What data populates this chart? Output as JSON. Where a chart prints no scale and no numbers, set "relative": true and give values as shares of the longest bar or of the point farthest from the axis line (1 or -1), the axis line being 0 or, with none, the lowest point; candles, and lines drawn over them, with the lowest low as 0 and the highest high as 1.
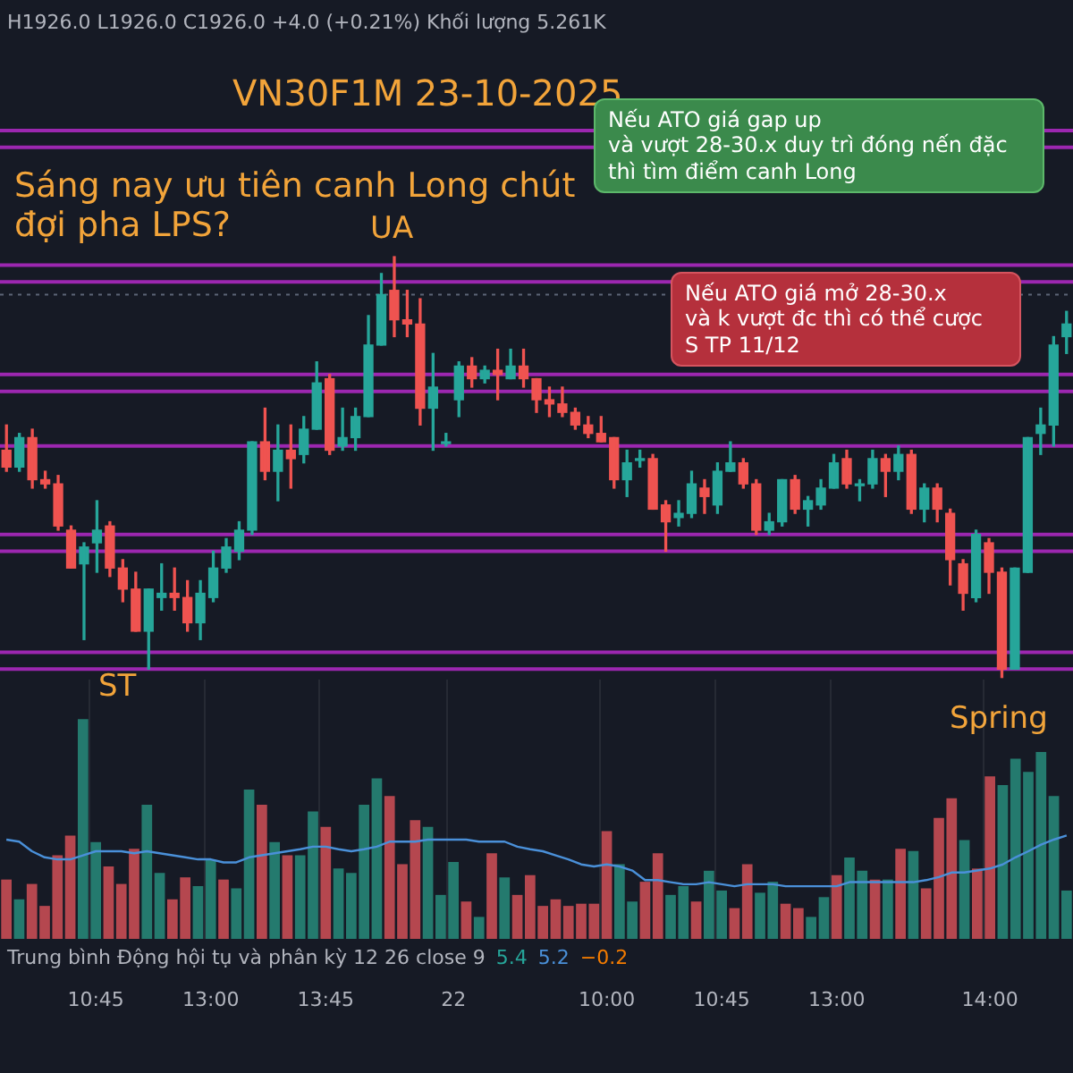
{
  "chart_data": [
    {
      "type": "candlestick",
      "title": "VN30F1M 23-10-2025",
      "relative": true,
      "categories": [
        null,
        null,
        null,
        null,
        null,
        null,
        null,
        null,
        null,
        null,
        null,
        null,
        null,
        null,
        null,
        null,
        null,
        null,
        null,
        null,
        null,
        null,
        null,
        null,
        null,
        null,
        null,
        null,
        null,
        null,
        null,
        null,
        null,
        null,
        null,
        null,
        null,
        null,
        null,
        null,
        null,
        null,
        null,
        null,
        null,
        null,
        null,
        null,
        null,
        null,
        null,
        null,
        null,
        null,
        null,
        null,
        null,
        null,
        null,
        null,
        null,
        null,
        null,
        null,
        null,
        null,
        null,
        null,
        null,
        null,
        null,
        null,
        null,
        null,
        null,
        null,
        null,
        null,
        null,
        null,
        null,
        null,
        null
      ],
      "ohlc": [
        [
          0.54,
          0.6,
          0.49,
          0.5
        ],
        [
          0.5,
          0.58,
          0.49,
          0.57
        ],
        [
          0.57,
          0.59,
          0.45,
          0.47
        ],
        [
          0.47,
          0.49,
          0.45,
          0.46
        ],
        [
          0.46,
          0.48,
          0.35,
          0.36
        ],
        [
          0.35,
          0.36,
          0.26,
          0.26
        ],
        [
          0.27,
          0.32,
          0.09,
          0.31
        ],
        [
          0.32,
          0.42,
          0.25,
          0.35
        ],
        [
          0.36,
          0.37,
          0.24,
          0.26
        ],
        [
          0.26,
          0.28,
          0.18,
          0.21
        ],
        [
          0.21,
          0.25,
          0.11,
          0.11
        ],
        [
          0.11,
          0.21,
          0.02,
          0.21
        ],
        [
          0.19,
          0.27,
          0.16,
          0.2
        ],
        [
          0.2,
          0.26,
          0.16,
          0.19
        ],
        [
          0.19,
          0.23,
          0.11,
          0.13
        ],
        [
          0.13,
          0.23,
          0.09,
          0.2
        ],
        [
          0.19,
          0.3,
          0.18,
          0.26
        ],
        [
          0.26,
          0.33,
          0.25,
          0.31
        ],
        [
          0.3,
          0.37,
          0.28,
          0.35
        ],
        [
          0.35,
          0.56,
          0.34,
          0.56
        ],
        [
          0.56,
          0.64,
          0.47,
          0.49
        ],
        [
          0.49,
          0.6,
          0.42,
          0.54
        ],
        [
          0.54,
          0.6,
          0.45,
          0.52
        ],
        [
          0.53,
          0.62,
          0.51,
          0.59
        ],
        [
          0.59,
          0.75,
          0.59,
          0.7
        ],
        [
          0.71,
          0.72,
          0.53,
          0.54
        ],
        [
          0.55,
          0.64,
          0.54,
          0.57
        ],
        [
          0.57,
          0.64,
          0.54,
          0.62
        ],
        [
          0.62,
          0.86,
          0.62,
          0.79
        ],
        [
          0.79,
          0.96,
          0.79,
          0.91
        ],
        [
          0.92,
          1,
          0.81,
          0.85
        ],
        [
          0.85,
          0.92,
          0.81,
          0.84
        ],
        [
          0.84,
          0.9,
          0.6,
          0.64
        ],
        [
          0.64,
          0.77,
          0.54,
          0.69
        ],
        [
          0.56,
          0.58,
          0.55,
          0.56
        ],
        [
          0.66,
          0.75,
          0.62,
          0.74
        ],
        [
          0.74,
          0.76,
          0.69,
          0.71
        ],
        [
          0.71,
          0.74,
          0.7,
          0.73
        ],
        [
          0.73,
          0.78,
          0.66,
          0.72
        ],
        [
          0.71,
          0.78,
          0.71,
          0.74
        ],
        [
          0.74,
          0.78,
          0.69,
          0.71
        ],
        [
          0.71,
          0.71,
          0.63,
          0.66
        ],
        [
          0.66,
          0.69,
          0.62,
          0.65
        ],
        [
          0.65,
          0.69,
          0.62,
          0.63
        ],
        [
          0.63,
          0.64,
          0.59,
          0.6
        ],
        [
          0.6,
          0.62,
          0.57,
          0.58
        ],
        [
          0.58,
          0.62,
          0.56,
          0.56
        ],
        [
          0.57,
          0.57,
          0.45,
          0.47
        ],
        [
          0.47,
          0.54,
          0.43,
          0.51
        ],
        [
          0.52,
          0.54,
          0.5,
          0.52
        ],
        [
          0.52,
          0.53,
          0.4,
          0.4
        ],
        [
          0.41,
          0.42,
          0.3,
          0.37
        ],
        [
          0.38,
          0.42,
          0.36,
          0.39
        ],
        [
          0.39,
          0.49,
          0.38,
          0.46
        ],
        [
          0.45,
          0.47,
          0.39,
          0.43
        ],
        [
          0.41,
          0.51,
          0.39,
          0.49
        ],
        [
          0.49,
          0.56,
          0.49,
          0.51
        ],
        [
          0.51,
          0.52,
          0.45,
          0.46
        ],
        [
          0.46,
          0.47,
          0.34,
          0.35
        ],
        [
          0.35,
          0.39,
          0.34,
          0.37
        ],
        [
          0.37,
          0.47,
          0.36,
          0.47
        ],
        [
          0.47,
          0.48,
          0.39,
          0.4
        ],
        [
          0.4,
          0.43,
          0.36,
          0.42
        ],
        [
          0.41,
          0.47,
          0.4,
          0.45
        ],
        [
          0.45,
          0.53,
          0.45,
          0.51
        ],
        [
          0.52,
          0.54,
          0.45,
          0.46
        ],
        [
          0.46,
          0.47,
          0.42,
          0.46
        ],
        [
          0.46,
          0.54,
          0.45,
          0.52
        ],
        [
          0.52,
          0.53,
          0.43,
          0.49
        ],
        [
          0.49,
          0.55,
          0.47,
          0.53
        ],
        [
          0.53,
          0.54,
          0.39,
          0.4
        ],
        [
          0.4,
          0.46,
          0.37,
          0.45
        ],
        [
          0.45,
          0.46,
          0.37,
          0.4
        ],
        [
          0.39,
          0.4,
          0.22,
          0.28
        ],
        [
          0.27,
          0.28,
          0.16,
          0.2
        ],
        [
          0.19,
          0.35,
          0.18,
          0.34
        ],
        [
          0.32,
          0.33,
          0.2,
          0.25
        ],
        [
          0.25,
          0.26,
          0,
          0.02
        ],
        [
          0.02,
          0.26,
          0.02,
          0.26
        ],
        [
          0.25,
          0.57,
          0.25,
          0.57
        ],
        [
          0.58,
          0.64,
          0.53,
          0.6
        ],
        [
          0.6,
          0.81,
          0.55,
          0.79
        ],
        [
          0.81,
          0.87,
          0.77,
          0.84
        ]
      ],
      "colors": [
        "#ef5350",
        "#26a69a",
        "#ef5350",
        "#ef5350",
        "#ef5350",
        "#ef5350",
        "#26a69a",
        "#26a69a",
        "#ef5350",
        "#ef5350",
        "#ef5350",
        "#26a69a",
        "#26a69a",
        "#ef5350",
        "#ef5350",
        "#26a69a",
        "#26a69a",
        "#26a69a",
        "#26a69a",
        "#26a69a",
        "#ef5350",
        "#26a69a",
        "#ef5350",
        "#26a69a",
        "#26a69a",
        "#ef5350",
        "#26a69a",
        "#26a69a",
        "#26a69a",
        "#26a69a",
        "#ef5350",
        "#ef5350",
        "#ef5350",
        "#26a69a",
        "#26a69a",
        "#26a69a",
        "#ef5350",
        "#26a69a",
        "#ef5350",
        "#26a69a",
        "#ef5350",
        "#ef5350",
        "#ef5350",
        "#ef5350",
        "#ef5350",
        "#ef5350",
        "#ef5350",
        "#ef5350",
        "#26a69a",
        "#26a69a",
        "#ef5350",
        "#ef5350",
        "#26a69a",
        "#26a69a",
        "#ef5350",
        "#26a69a",
        "#26a69a",
        "#ef5350",
        "#ef5350",
        "#26a69a",
        "#26a69a",
        "#ef5350",
        "#26a69a",
        "#26a69a",
        "#26a69a",
        "#ef5350",
        "#26a69a",
        "#26a69a",
        "#ef5350",
        "#26a69a",
        "#ef5350",
        "#26a69a",
        "#ef5350",
        "#ef5350",
        "#ef5350",
        "#26a69a",
        "#ef5350",
        "#ef5350",
        "#26a69a",
        "#26a69a",
        "#26a69a",
        "#26a69a",
        "#26a69a"
      ],
      "ref_lines": [
        {
          "axis": "y",
          "value": 1.3,
          "color": "#9c27b0",
          "line_style": "solid"
        },
        {
          "axis": "y",
          "value": 1.26,
          "color": "#9c27b0",
          "line_style": "solid"
        },
        {
          "axis": "y",
          "value": 0.98,
          "color": "#9c27b0",
          "line_style": "solid"
        },
        {
          "axis": "y",
          "value": 0.94,
          "color": "#9c27b0",
          "line_style": "solid"
        },
        {
          "axis": "y",
          "value": 0.72,
          "color": "#9c27b0",
          "line_style": "solid"
        },
        {
          "axis": "y",
          "value": 0.68,
          "color": "#9c27b0",
          "line_style": "solid"
        },
        {
          "axis": "y",
          "value": 0.34,
          "color": "#9c27b0",
          "line_style": "solid"
        },
        {
          "axis": "y",
          "value": 0.3,
          "color": "#9c27b0",
          "line_style": "solid"
        },
        {
          "axis": "y",
          "value": 0.06,
          "color": "#9c27b0",
          "line_style": "solid"
        },
        {
          "axis": "y",
          "value": 0.02,
          "color": "#9c27b0",
          "line_style": "solid"
        },
        {
          "axis": "y",
          "value": 0.55,
          "color": "#9c27b0",
          "line_style": "solid"
        },
        {
          "axis": "y",
          "value": 0.91,
          "color": "#5d6577",
          "line_style": "dotted"
        }
      ],
      "annotations": [
        "H1926.0 L1926.0 C1926.0 +4.0 (+0.21%) Khối lượng 5.261K",
        "Sáng nay ưu tiên canh Long chút\nđợi pha LPS?",
        "UA",
        "ST",
        "Spring",
        "Nếu ATO giá gap up\nvà vượt 28-30.x duy trì đóng nến đặc\nthì tìm điểm canh Long",
        "Nếu ATO giá mở 28-30.x\nvà k vượt đc thì có thể cược\nS TP 11/12"
      ]
    },
    {
      "type": "bar",
      "relative": true,
      "grid": "x",
      "categories": [
        null,
        null,
        null,
        null,
        null,
        null,
        null,
        "10:45",
        null,
        null,
        null,
        null,
        null,
        null,
        null,
        null,
        "13:00",
        null,
        null,
        null,
        null,
        null,
        null,
        null,
        null,
        "13:45",
        null,
        null,
        null,
        null,
        null,
        null,
        null,
        null,
        null,
        "22",
        null,
        null,
        null,
        null,
        null,
        null,
        null,
        null,
        null,
        null,
        null,
        "10:00",
        null,
        null,
        null,
        null,
        null,
        null,
        null,
        null,
        "10:45",
        null,
        null,
        null,
        null,
        null,
        null,
        null,
        null,
        "13:00",
        null,
        null,
        null,
        null,
        null,
        null,
        null,
        null,
        null,
        null,
        null,
        "14:00",
        null,
        null,
        null,
        null,
        null,
        null
      ],
      "series": [
        {
          "type": "bar",
          "values": [
            0.27,
            0.18,
            0.25,
            0.15,
            0.38,
            0.47,
            1,
            0.44,
            0.33,
            0.25,
            0.41,
            0.61,
            0.3,
            0.18,
            0.28,
            0.24,
            0.36,
            0.27,
            0.23,
            0.68,
            0.61,
            0.44,
            0.38,
            0.38,
            0.58,
            0.51,
            0.32,
            0.3,
            0.61,
            0.73,
            0.65,
            0.34,
            0.54,
            0.51,
            0.2,
            0.35,
            0.17,
            0.1,
            0.39,
            0.28,
            0.2,
            0.29,
            0.15,
            0.18,
            0.15,
            0.16,
            0.16,
            0.49,
            0.34,
            0.17,
            0.26,
            0.39,
            0.2,
            0.24,
            0.17,
            0.31,
            0.22,
            0.14,
            0.34,
            0.21,
            0.26,
            0.16,
            0.14,
            0.1,
            0.19,
            0.29,
            0.37,
            0.31,
            0.27,
            0.27,
            0.41,
            0.4,
            0.23,
            0.55,
            0.64,
            0.45,
            0.32,
            0.74,
            0.7,
            0.82,
            0.76,
            0.85,
            0.65,
            0.22
          ],
          "colors": [
            "#b5474f",
            "#247a6e",
            "#b5474f",
            "#b5474f",
            "#b5474f",
            "#b5474f",
            "#247a6e",
            "#247a6e",
            "#b5474f",
            "#b5474f",
            "#b5474f",
            "#247a6e",
            "#247a6e",
            "#b5474f",
            "#b5474f",
            "#247a6e",
            "#247a6e",
            "#b5474f",
            "#247a6e",
            "#247a6e",
            "#b5474f",
            "#247a6e",
            "#b5474f",
            "#247a6e",
            "#247a6e",
            "#b5474f",
            "#247a6e",
            "#247a6e",
            "#247a6e",
            "#247a6e",
            "#b5474f",
            "#b5474f",
            "#b5474f",
            "#247a6e",
            "#247a6e",
            "#247a6e",
            "#b5474f",
            "#247a6e",
            "#b5474f",
            "#247a6e",
            "#b5474f",
            "#b5474f",
            "#b5474f",
            "#b5474f",
            "#b5474f",
            "#b5474f",
            "#b5474f",
            "#b5474f",
            "#247a6e",
            "#247a6e",
            "#b5474f",
            "#b5474f",
            "#247a6e",
            "#247a6e",
            "#b5474f",
            "#247a6e",
            "#247a6e",
            "#b5474f",
            "#b5474f",
            "#247a6e",
            "#247a6e",
            "#b5474f",
            "#b5474f",
            "#247a6e",
            "#247a6e",
            "#b5474f",
            "#247a6e",
            "#247a6e",
            "#b5474f",
            "#247a6e",
            "#b5474f",
            "#247a6e",
            "#b5474f",
            "#b5474f",
            "#b5474f",
            "#247a6e",
            "#b5474f",
            "#b5474f",
            "#247a6e",
            "#247a6e",
            "#247a6e",
            "#247a6e",
            "#247a6e",
            "#247a6e"
          ]
        }
      ],
      "annotations": [
        "Trung bình Động hội tụ và phân kỳ 12 26 close 9",
        "5.4",
        "5.2",
        "−0.2"
      ]
    },
    {
      "type": "line",
      "relative": true,
      "categories": [
        null,
        null,
        null,
        null,
        null,
        null,
        null,
        null,
        null,
        null,
        null,
        null,
        null,
        null,
        null,
        null,
        null,
        null,
        null,
        null,
        null,
        null,
        null,
        null,
        null,
        null,
        null,
        null,
        null,
        null,
        null,
        null,
        null,
        null,
        null,
        null,
        null,
        null,
        null,
        null,
        null,
        null,
        null,
        null,
        null,
        null,
        null,
        null,
        null,
        null,
        null,
        null,
        null,
        null,
        null,
        null,
        null,
        null,
        null,
        null,
        null,
        null,
        null,
        null,
        null,
        null,
        null,
        null,
        null,
        null,
        null,
        null,
        null,
        null,
        null,
        null,
        null,
        null,
        null,
        null,
        null,
        null,
        null,
        null
      ],
      "series": [
        {
          "color": "#4a90d9",
          "values": [
            0.92,
            0.88,
            0.69,
            0.57,
            0.53,
            0.53,
            0.61,
            0.69,
            0.69,
            0.69,
            0.65,
            0.69,
            0.65,
            0.61,
            0.57,
            0.53,
            0.53,
            0.47,
            0.47,
            0.57,
            0.61,
            0.65,
            0.69,
            0.73,
            0.78,
            0.78,
            0.73,
            0.69,
            0.73,
            0.78,
            0.88,
            0.88,
            0.88,
            0.92,
            0.92,
            0.92,
            0.92,
            0.88,
            0.88,
            0.88,
            0.78,
            0.73,
            0.69,
            0.61,
            0.53,
            0.43,
            0.39,
            0.43,
            0.39,
            0.31,
            0.12,
            0.12,
            0.08,
            0.04,
            0.04,
            0.08,
            0.04,
            0,
            0.04,
            0.04,
            0.04,
            0,
            0,
            0,
            0,
            0,
            0.08,
            0.08,
            0.08,
            0.08,
            0.08,
            0.08,
            0.12,
            0.18,
            0.27,
            0.27,
            0.31,
            0.35,
            0.43,
            0.57,
            0.69,
            0.82,
            0.92,
            1
          ]
        }
      ]
    }
  ]
}
